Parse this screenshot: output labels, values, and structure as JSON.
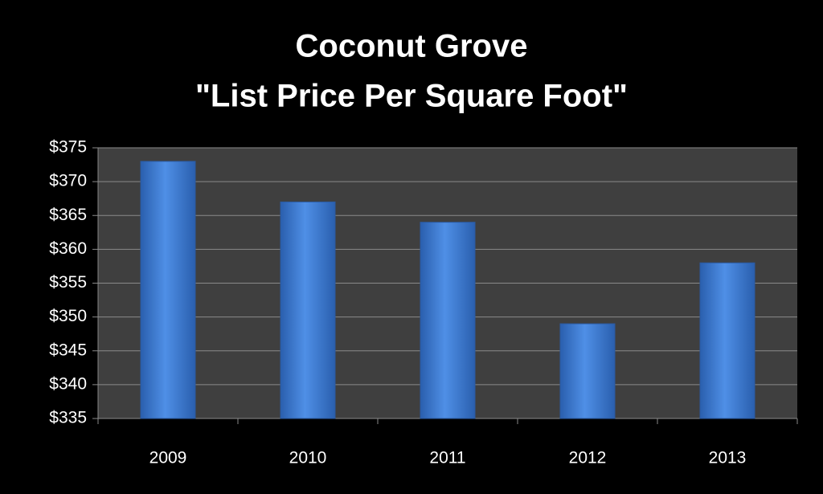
{
  "chart_data": {
    "type": "bar",
    "title": [
      "Coconut Grove",
      "\"List Price Per Square Foot\""
    ],
    "categories": [
      "2009",
      "2010",
      "2011",
      "2012",
      "2013"
    ],
    "values": [
      373,
      367,
      364,
      349,
      358
    ],
    "color": "#3f7fd6",
    "ylim": [
      335,
      375
    ],
    "yticks": [
      {
        "value": 335,
        "label": "$335"
      },
      {
        "value": 340,
        "label": "$340"
      },
      {
        "value": 345,
        "label": "$345"
      },
      {
        "value": 350,
        "label": "$350"
      },
      {
        "value": 355,
        "label": "$355"
      },
      {
        "value": 360,
        "label": "$360"
      },
      {
        "value": 365,
        "label": "$365"
      },
      {
        "value": 370,
        "label": "$370"
      },
      {
        "value": 375,
        "label": "$375"
      }
    ],
    "grid": true
  }
}
